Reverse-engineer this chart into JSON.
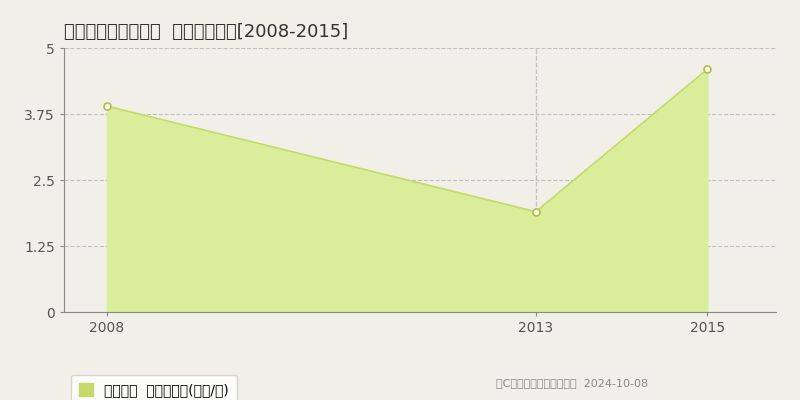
{
  "title": "高岡郡佐川町本郷耕  住宅価格推移[2008-2015]",
  "years": [
    2008,
    2013,
    2015
  ],
  "values": [
    3.9,
    1.9,
    4.6
  ],
  "xlim": [
    2007.5,
    2015.8
  ],
  "ylim": [
    0,
    5
  ],
  "yticks": [
    0,
    1.25,
    2.5,
    3.75,
    5
  ],
  "xticks": [
    2008,
    2013,
    2015
  ],
  "line_color": "#c8d96b",
  "fill_color": "#d9ed9a",
  "marker_color": "#ffffff",
  "marker_edge_color": "#b0c040",
  "grid_color": "#c0c0c0",
  "background_color": "#f0f0e8",
  "plot_bg_color": "#f0f0e8",
  "legend_label": "住宅価格  平均坪単価(万円/坪)",
  "copyright_text": "（C）土地価格ドットコム  2024-10-08",
  "vline_x": 2013,
  "title_fontsize": 13,
  "tick_fontsize": 10,
  "legend_fontsize": 10
}
